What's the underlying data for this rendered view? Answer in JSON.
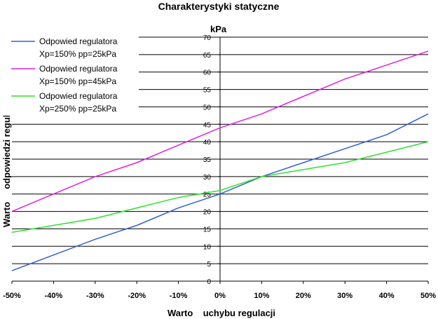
{
  "chart_data": {
    "type": "line",
    "title": "Charakterystyki statyczne",
    "xlabel": "Warto    uchybu regulacji",
    "ylabel": "Warto     odpowiedzi regulatora",
    "yunit": "kPa",
    "x": [
      -50,
      -40,
      -30,
      -20,
      -10,
      0,
      10,
      20,
      30,
      40,
      50
    ],
    "x_tick_labels": [
      "-50%",
      "-40%",
      "-30%",
      "-20%",
      "-10%",
      "0%",
      "10%",
      "20%",
      "30%",
      "40%",
      "50%"
    ],
    "ylim": [
      0,
      70
    ],
    "y_ticks": [
      0,
      5,
      10,
      15,
      20,
      25,
      30,
      35,
      40,
      45,
      50,
      55,
      60,
      65,
      70
    ],
    "grid": "horizontal",
    "legend_position": "top-left",
    "series": [
      {
        "name_line1": "Odpowied  regulatora",
        "name_line2": "Xp=150% pp=25kPa",
        "color": "#3060d8",
        "values": [
          3,
          7.5,
          12,
          16,
          21,
          25,
          30,
          34,
          38,
          42,
          48
        ]
      },
      {
        "name_line1": "Odpowied  regulatora",
        "name_line2": "Xp=150% pp=45kPa",
        "color": "#e020e0",
        "values": [
          20,
          25,
          30,
          34,
          39,
          44,
          48,
          53,
          58,
          62,
          66
        ]
      },
      {
        "name_line1": "Odpowied  regulatora",
        "name_line2": "Xp=250% pp=25kPa",
        "color": "#30e030",
        "values": [
          14,
          16,
          18,
          21,
          24,
          26,
          30,
          32,
          34,
          37,
          40
        ]
      }
    ]
  }
}
